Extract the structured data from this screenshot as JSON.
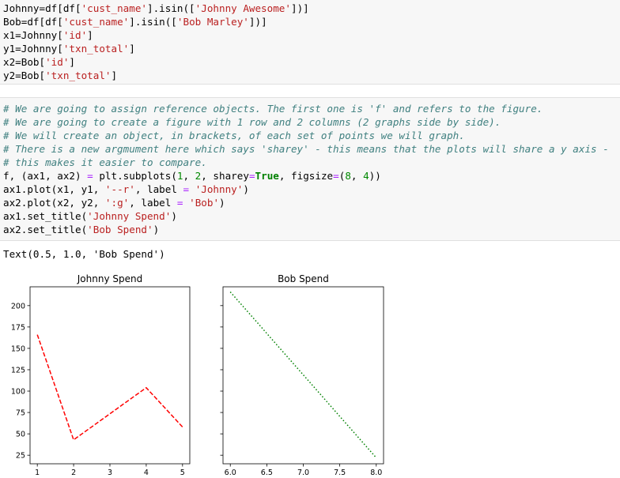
{
  "cell1": {
    "lines": [
      [
        {
          "t": "Johnny=df[df["
        },
        {
          "t": "'cust_name'",
          "c": "str"
        },
        {
          "t": "].isin(["
        },
        {
          "t": "'Johnny Awesome'",
          "c": "str"
        },
        {
          "t": "])]"
        }
      ],
      [
        {
          "t": "Bob=df[df["
        },
        {
          "t": "'cust_name'",
          "c": "str"
        },
        {
          "t": "].isin(["
        },
        {
          "t": "'Bob Marley'",
          "c": "str"
        },
        {
          "t": "])]"
        }
      ],
      [
        {
          "t": "x1=Johnny["
        },
        {
          "t": "'id'",
          "c": "str"
        },
        {
          "t": "]"
        }
      ],
      [
        {
          "t": "y1=Johnny["
        },
        {
          "t": "'txn_total'",
          "c": "str"
        },
        {
          "t": "]"
        }
      ],
      [
        {
          "t": "x2=Bob["
        },
        {
          "t": "'id'",
          "c": "str"
        },
        {
          "t": "]"
        }
      ],
      [
        {
          "t": "y2=Bob["
        },
        {
          "t": "'txn_total'",
          "c": "str"
        },
        {
          "t": "]"
        }
      ]
    ]
  },
  "cell2": {
    "lines": [
      [
        {
          "t": "# We are going to assign reference objects. The first one is 'f' and refers to the figure.",
          "c": "com"
        }
      ],
      [
        {
          "t": "# We are going to create a figure with 1 row and 2 columns (2 graphs side by side).",
          "c": "com"
        }
      ],
      [
        {
          "t": "# We will create an object, in brackets, of each set of points we will graph.",
          "c": "com"
        }
      ],
      [
        {
          "t": "# There is a new argmument here which says 'sharey' - this means that the plots will share a y axis -",
          "c": "com"
        }
      ],
      [
        {
          "t": "# this makes it easier to compare.",
          "c": "com"
        }
      ],
      [
        {
          "t": "f, (ax1, ax2) "
        },
        {
          "t": "=",
          "c": "op"
        },
        {
          "t": " plt.subplots("
        },
        {
          "t": "1",
          "c": "num"
        },
        {
          "t": ", "
        },
        {
          "t": "2",
          "c": "num"
        },
        {
          "t": ", sharey"
        },
        {
          "t": "=",
          "c": "op"
        },
        {
          "t": "True",
          "c": "kw"
        },
        {
          "t": ", figsize"
        },
        {
          "t": "=",
          "c": "op"
        },
        {
          "t": "("
        },
        {
          "t": "8",
          "c": "num"
        },
        {
          "t": ", "
        },
        {
          "t": "4",
          "c": "num"
        },
        {
          "t": "))"
        }
      ],
      [
        {
          "t": "ax1.plot(x1, y1, "
        },
        {
          "t": "'--r'",
          "c": "str"
        },
        {
          "t": ", label "
        },
        {
          "t": "=",
          "c": "op"
        },
        {
          "t": " "
        },
        {
          "t": "'Johnny'",
          "c": "str"
        },
        {
          "t": ")"
        }
      ],
      [
        {
          "t": "ax2.plot(x2, y2, "
        },
        {
          "t": "':g'",
          "c": "str"
        },
        {
          "t": ", label "
        },
        {
          "t": "=",
          "c": "op"
        },
        {
          "t": " "
        },
        {
          "t": "'Bob'",
          "c": "str"
        },
        {
          "t": ")"
        }
      ],
      [
        {
          "t": "ax1.set_title("
        },
        {
          "t": "'Johnny Spend'",
          "c": "str"
        },
        {
          "t": ")"
        }
      ],
      [
        {
          "t": "ax2.set_title("
        },
        {
          "t": "'Bob Spend'",
          "c": "str"
        },
        {
          "t": ")"
        }
      ]
    ]
  },
  "output": {
    "text": "Text(0.5, 1.0, 'Bob Spend')"
  },
  "chart_data": [
    {
      "type": "line",
      "title": "Johnny Spend",
      "xlabel": "",
      "ylabel": "",
      "x": [
        1,
        2,
        4,
        5
      ],
      "y": [
        166,
        43,
        104,
        58
      ],
      "series": [
        {
          "name": "Johnny",
          "x": [
            1,
            2,
            4,
            5
          ],
          "values": [
            166,
            43,
            104,
            58
          ],
          "style": "dashed",
          "color": "#ff0000"
        }
      ],
      "xlim": [
        0.8,
        5.2
      ],
      "ylim": [
        15,
        222
      ],
      "xticks": [
        1,
        2,
        3,
        4,
        5
      ],
      "xtick_labels": [
        "1",
        "2",
        "3",
        "4",
        "5"
      ],
      "yticks": [
        25,
        50,
        75,
        100,
        125,
        150,
        175,
        200
      ],
      "ytick_labels": [
        "25",
        "50",
        "75",
        "100",
        "125",
        "150",
        "175",
        "200"
      ],
      "grid": false
    },
    {
      "type": "line",
      "title": "Bob Spend",
      "xlabel": "",
      "ylabel": "",
      "x": [
        6.0,
        8.0
      ],
      "y": [
        216,
        22
      ],
      "series": [
        {
          "name": "Bob",
          "x": [
            6.0,
            8.0
          ],
          "values": [
            216,
            22
          ],
          "style": "dotted",
          "color": "#008000"
        }
      ],
      "xlim": [
        5.9,
        8.1
      ],
      "ylim": [
        15,
        222
      ],
      "xticks": [
        6.0,
        6.5,
        7.0,
        7.5,
        8.0
      ],
      "xtick_labels": [
        "6.0",
        "6.5",
        "7.0",
        "7.5",
        "8.0"
      ],
      "yticks": [
        25,
        50,
        75,
        100,
        125,
        150,
        175,
        200
      ],
      "ytick_labels": [],
      "grid": false
    }
  ]
}
